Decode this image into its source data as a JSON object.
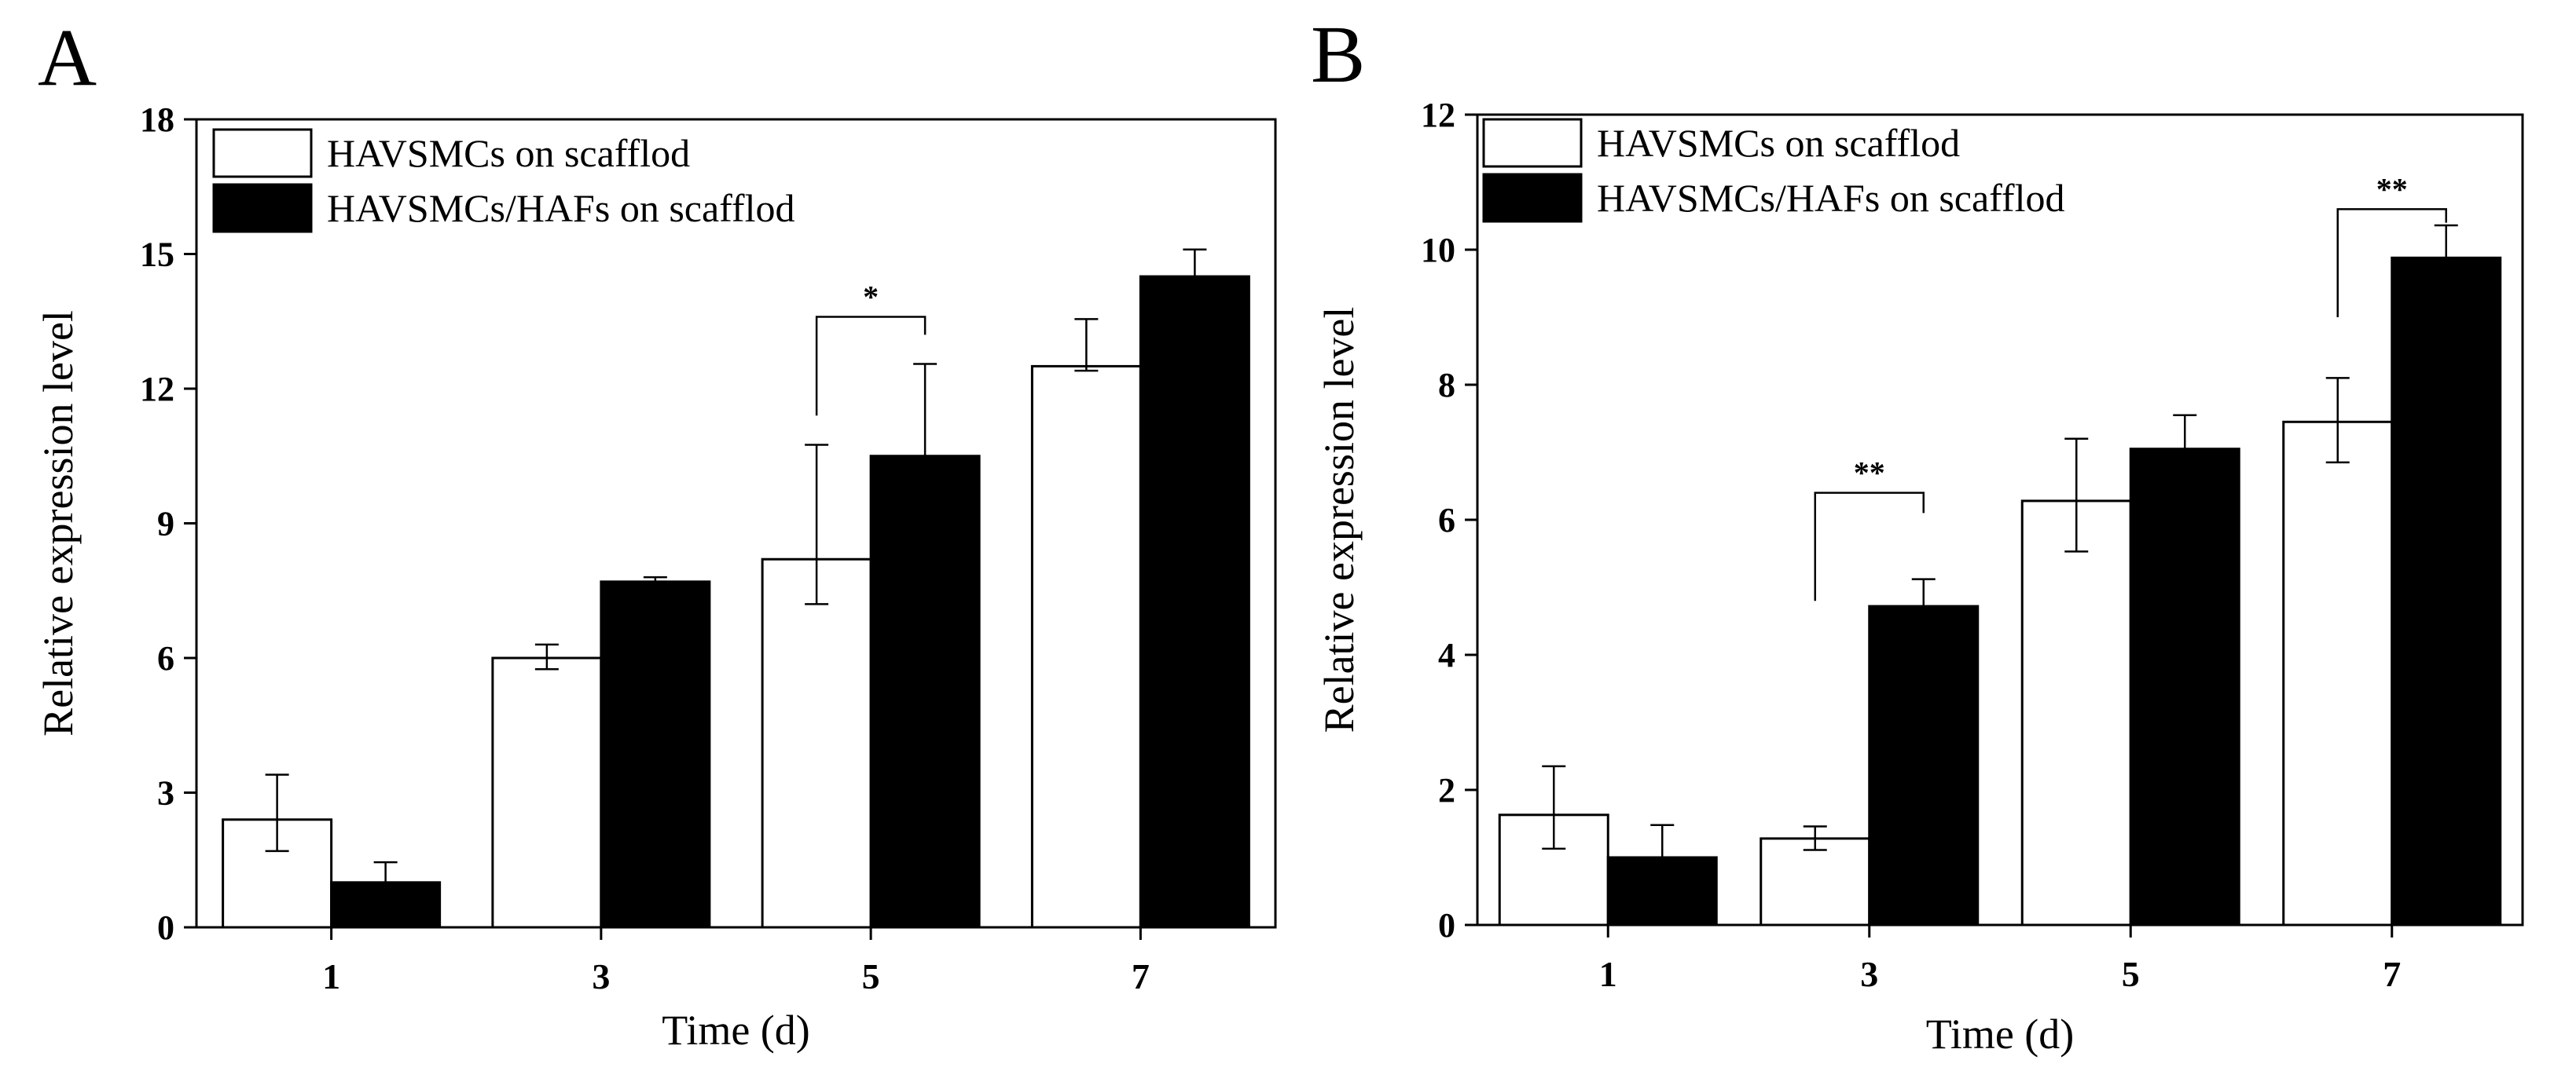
{
  "chart_data": [
    {
      "type": "bar",
      "panel_label": "A",
      "xlabel": "Time (d)",
      "ylabel": "Relative expression level",
      "categories": [
        "1",
        "3",
        "5",
        "7"
      ],
      "ylim": [
        0,
        18
      ],
      "yticks": [
        0,
        3,
        6,
        9,
        12,
        15,
        18
      ],
      "legend_position": "top-left",
      "grid": false,
      "series": [
        {
          "name": "HAVSMCs on scafflod",
          "fill": "#ffffff",
          "values": [
            2.4,
            6.0,
            8.2,
            12.5
          ],
          "error_low": [
            0.7,
            0.25,
            1.0,
            0.1
          ],
          "error_high": [
            1.0,
            0.3,
            2.55,
            1.05
          ]
        },
        {
          "name": "HAVSMCs/HAFs on scafflod",
          "fill": "#000000",
          "values": [
            1.0,
            7.7,
            10.5,
            14.5
          ],
          "error_low": [
            0.0,
            0.0,
            0.0,
            0.0
          ],
          "error_high": [
            0.45,
            0.1,
            2.05,
            0.6
          ]
        }
      ],
      "annotations": [
        {
          "category_index": 2,
          "label": "*",
          "bracket_top": 13.6,
          "left_tip": 11.4,
          "right_tip": 13.2
        }
      ]
    },
    {
      "type": "bar",
      "panel_label": "B",
      "xlabel": "Time (d)",
      "ylabel": "Relative expression level",
      "categories": [
        "1",
        "3",
        "5",
        "7"
      ],
      "ylim": [
        0,
        12
      ],
      "yticks": [
        0,
        2,
        4,
        6,
        8,
        10,
        12
      ],
      "legend_position": "top-left",
      "grid": false,
      "series": [
        {
          "name": "HAVSMCs on scafflod",
          "fill": "#ffffff",
          "values": [
            1.63,
            1.28,
            6.28,
            7.45
          ],
          "error_low": [
            0.5,
            0.17,
            0.75,
            0.6
          ],
          "error_high": [
            0.72,
            0.18,
            0.92,
            0.65
          ]
        },
        {
          "name": "HAVSMCs/HAFs on scafflod",
          "fill": "#000000",
          "values": [
            1.0,
            4.72,
            7.05,
            9.88
          ],
          "error_low": [
            0.0,
            0.0,
            0.0,
            0.0
          ],
          "error_high": [
            0.48,
            0.4,
            0.5,
            0.48
          ]
        }
      ],
      "annotations": [
        {
          "category_index": 1,
          "label": "**",
          "bracket_top": 6.4,
          "left_tip": 4.8,
          "right_tip": 6.1
        },
        {
          "category_index": 3,
          "label": "**",
          "bracket_top": 10.6,
          "left_tip": 9.0,
          "right_tip": 10.4
        }
      ]
    }
  ]
}
